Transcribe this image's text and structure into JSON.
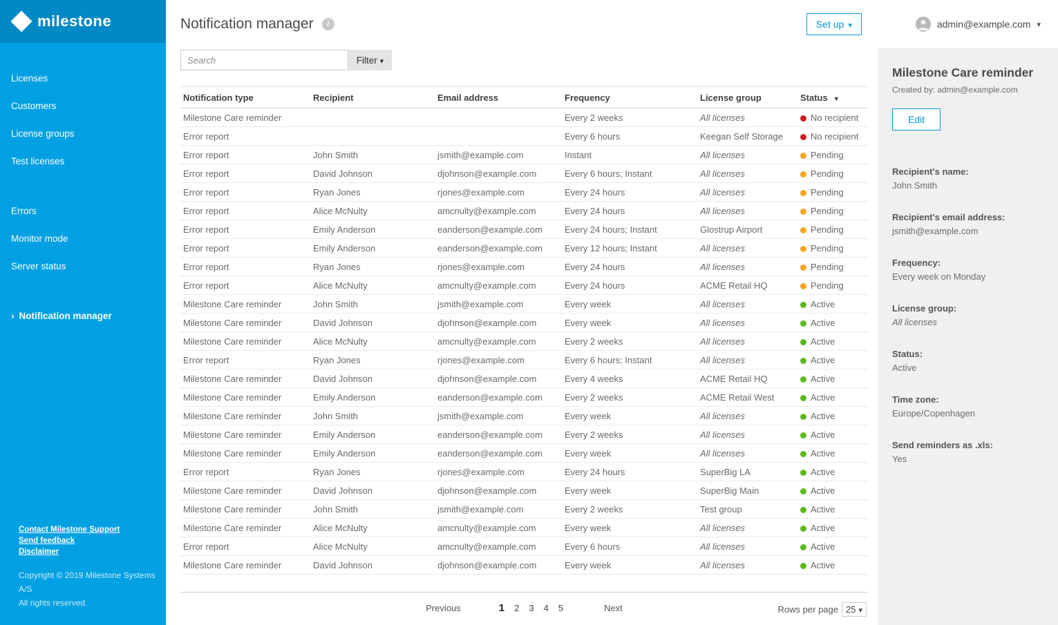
{
  "sidebar": {
    "logo_text": "milestone",
    "groups": [
      [
        "Licenses",
        "Customers",
        "License groups",
        "Test licenses"
      ],
      [
        "Errors",
        "Monitor mode",
        "Server status"
      ]
    ],
    "active_item": "Notification manager",
    "footer_links": [
      "Contact Milestone Support",
      "Send feedback",
      "Disclaimer"
    ],
    "copyright_line1": "Copyright © 2019 Milestone Systems A/S",
    "copyright_line2": "All rights reserved."
  },
  "header": {
    "title": "Notification manager",
    "setup_label": "Set up",
    "user_email": "admin@example.com"
  },
  "toolbar": {
    "search_placeholder": "Search",
    "filter_label": "Filter"
  },
  "table": {
    "columns": [
      {
        "label": "Notification type",
        "sortable": false
      },
      {
        "label": "Recipient",
        "sortable": false
      },
      {
        "label": "Email address",
        "sortable": false
      },
      {
        "label": "Frequency",
        "sortable": false
      },
      {
        "label": "License group",
        "sortable": false
      },
      {
        "label": "Status",
        "sortable": true
      }
    ],
    "rows": [
      {
        "type": "Milestone Care reminder",
        "recipient": "",
        "email": "",
        "frequency": "Every 2 weeks",
        "license_group": "All licenses",
        "license_group_italic": true,
        "status": "No recipient",
        "status_key": "no_recipient"
      },
      {
        "type": "Error report",
        "recipient": "",
        "email": "",
        "frequency": "Every 6 hours",
        "license_group": "Keegan Self Storage",
        "license_group_italic": false,
        "status": "No recipient",
        "status_key": "no_recipient"
      },
      {
        "type": "Error report",
        "recipient": "John Smith",
        "email": "jsmith@example.com",
        "frequency": "Instant",
        "license_group": "All licenses",
        "license_group_italic": true,
        "status": "Pending",
        "status_key": "pending"
      },
      {
        "type": "Error report",
        "recipient": "David Johnson",
        "email": "djohnson@example.com",
        "frequency": "Every 6 hours; Instant",
        "license_group": "All licenses",
        "license_group_italic": true,
        "status": "Pending",
        "status_key": "pending"
      },
      {
        "type": "Error report",
        "recipient": "Ryan Jones",
        "email": "rjones@example.com",
        "frequency": "Every 24 hours",
        "license_group": "All licenses",
        "license_group_italic": true,
        "status": "Pending",
        "status_key": "pending"
      },
      {
        "type": "Error report",
        "recipient": "Alice McNulty",
        "email": "amcnulty@example.com",
        "frequency": "Every 24 hours",
        "license_group": "All licenses",
        "license_group_italic": true,
        "status": "Pending",
        "status_key": "pending"
      },
      {
        "type": "Error report",
        "recipient": "Emily Anderson",
        "email": "eanderson@example.com",
        "frequency": "Every 24 hours; Instant",
        "license_group": "Glostrup Airport",
        "license_group_italic": false,
        "status": "Pending",
        "status_key": "pending"
      },
      {
        "type": "Error report",
        "recipient": "Emily Anderson",
        "email": "eanderson@example.com",
        "frequency": "Every 12 hours; Instant",
        "license_group": "All licenses",
        "license_group_italic": true,
        "status": "Pending",
        "status_key": "pending"
      },
      {
        "type": "Error report",
        "recipient": "Ryan Jones",
        "email": "rjones@example.com",
        "frequency": "Every 24 hours",
        "license_group": "All licenses",
        "license_group_italic": true,
        "status": "Pending",
        "status_key": "pending"
      },
      {
        "type": "Error report",
        "recipient": "Alice McNulty",
        "email": "amcnulty@example.com",
        "frequency": "Every 24 hours",
        "license_group": "ACME Retail HQ",
        "license_group_italic": false,
        "status": "Pending",
        "status_key": "pending"
      },
      {
        "type": "Milestone Care reminder",
        "recipient": "John Smith",
        "email": "jsmith@example.com",
        "frequency": "Every week",
        "license_group": "All licenses",
        "license_group_italic": true,
        "status": "Active",
        "status_key": "active"
      },
      {
        "type": "Milestone Care reminder",
        "recipient": "David Johnson",
        "email": "djohnson@example.com",
        "frequency": "Every week",
        "license_group": "All licenses",
        "license_group_italic": true,
        "status": "Active",
        "status_key": "active"
      },
      {
        "type": "Milestone Care reminder",
        "recipient": "Alice McNulty",
        "email": "amcnulty@example.com",
        "frequency": "Every 2 weeks",
        "license_group": "All licenses",
        "license_group_italic": true,
        "status": "Active",
        "status_key": "active"
      },
      {
        "type": "Error report",
        "recipient": "Ryan Jones",
        "email": "rjones@example.com",
        "frequency": "Every 6 hours; Instant",
        "license_group": "All licenses",
        "license_group_italic": true,
        "status": "Active",
        "status_key": "active"
      },
      {
        "type": "Milestone Care reminder",
        "recipient": "David Johnson",
        "email": "djohnson@example.com",
        "frequency": "Every 4 weeks",
        "license_group": "ACME Retail HQ",
        "license_group_italic": false,
        "status": "Active",
        "status_key": "active"
      },
      {
        "type": "Milestone Care reminder",
        "recipient": "Emily Anderson",
        "email": "eanderson@example.com",
        "frequency": "Every 2 weeks",
        "license_group": "ACME Retail West",
        "license_group_italic": false,
        "status": "Active",
        "status_key": "active"
      },
      {
        "type": "Milestone Care reminder",
        "recipient": "John Smith",
        "email": "jsmith@example.com",
        "frequency": "Every week",
        "license_group": "All licenses",
        "license_group_italic": true,
        "status": "Active",
        "status_key": "active"
      },
      {
        "type": "Milestone Care reminder",
        "recipient": "Emily Anderson",
        "email": "eanderson@example.com",
        "frequency": "Every 2 weeks",
        "license_group": "All licenses",
        "license_group_italic": true,
        "status": "Active",
        "status_key": "active"
      },
      {
        "type": "Milestone Care reminder",
        "recipient": "Emily Anderson",
        "email": "eanderson@example.com",
        "frequency": "Every week",
        "license_group": "All licenses",
        "license_group_italic": true,
        "status": "Active",
        "status_key": "active"
      },
      {
        "type": "Error report",
        "recipient": "Ryan Jones",
        "email": "rjones@example.com",
        "frequency": "Every 24 hours",
        "license_group": "SuperBig LA",
        "license_group_italic": false,
        "status": "Active",
        "status_key": "active"
      },
      {
        "type": "Milestone Care reminder",
        "recipient": "David Johnson",
        "email": "djohnson@example.com",
        "frequency": "Every week",
        "license_group": "SuperBig Main",
        "license_group_italic": false,
        "status": "Active",
        "status_key": "active"
      },
      {
        "type": "Milestone Care reminder",
        "recipient": "John Smith",
        "email": "jsmith@example.com",
        "frequency": "Every 2 weeks",
        "license_group": "Test group",
        "license_group_italic": false,
        "status": "Active",
        "status_key": "active"
      },
      {
        "type": "Milestone Care reminder",
        "recipient": "Alice McNulty",
        "email": "amcnulty@example.com",
        "frequency": "Every week",
        "license_group": "All licenses",
        "license_group_italic": true,
        "status": "Active",
        "status_key": "active"
      },
      {
        "type": "Error report",
        "recipient": "Alice McNulty",
        "email": "amcnulty@example.com",
        "frequency": "Every 6 hours",
        "license_group": "All licenses",
        "license_group_italic": true,
        "status": "Active",
        "status_key": "active"
      },
      {
        "type": "Milestone Care reminder",
        "recipient": "David Johnson",
        "email": "djohnson@example.com",
        "frequency": "Every week",
        "license_group": "All licenses",
        "license_group_italic": true,
        "status": "Active",
        "status_key": "active"
      }
    ]
  },
  "pagination": {
    "previous_label": "Previous",
    "pages": [
      "1",
      "2",
      "3",
      "4",
      "5"
    ],
    "current_page": "1",
    "next_label": "Next",
    "rows_per_page_label": "Rows per page",
    "rows_per_page_value": "25"
  },
  "detail_panel": {
    "title": "Milestone Care reminder",
    "created_by": "Created by: admin@example.com",
    "edit_label": "Edit",
    "fields": [
      {
        "label": "Recipient's name:",
        "value": "John Smith",
        "italic": false
      },
      {
        "label": "Recipient's email address:",
        "value": "jsmith@example.com",
        "italic": false
      },
      {
        "label": "Frequency:",
        "value": "Every week on Monday",
        "italic": false
      },
      {
        "label": "License group:",
        "value": "All licenses",
        "italic": true
      },
      {
        "label": "Status:",
        "value": "Active",
        "italic": false
      },
      {
        "label": "Time zone:",
        "value": "Europe/Copenhagen",
        "italic": false
      },
      {
        "label": "Send reminders as .xls:",
        "value": "Yes",
        "italic": false
      }
    ]
  },
  "colors": {
    "accent_blue": "#0096d6",
    "sidebar_blue": "#01a0e2",
    "sidebar_band_blue": "#0189c6",
    "status": {
      "no_recipient": "#cf1d27",
      "pending": "#f5a623",
      "active": "#5eb71e"
    }
  }
}
